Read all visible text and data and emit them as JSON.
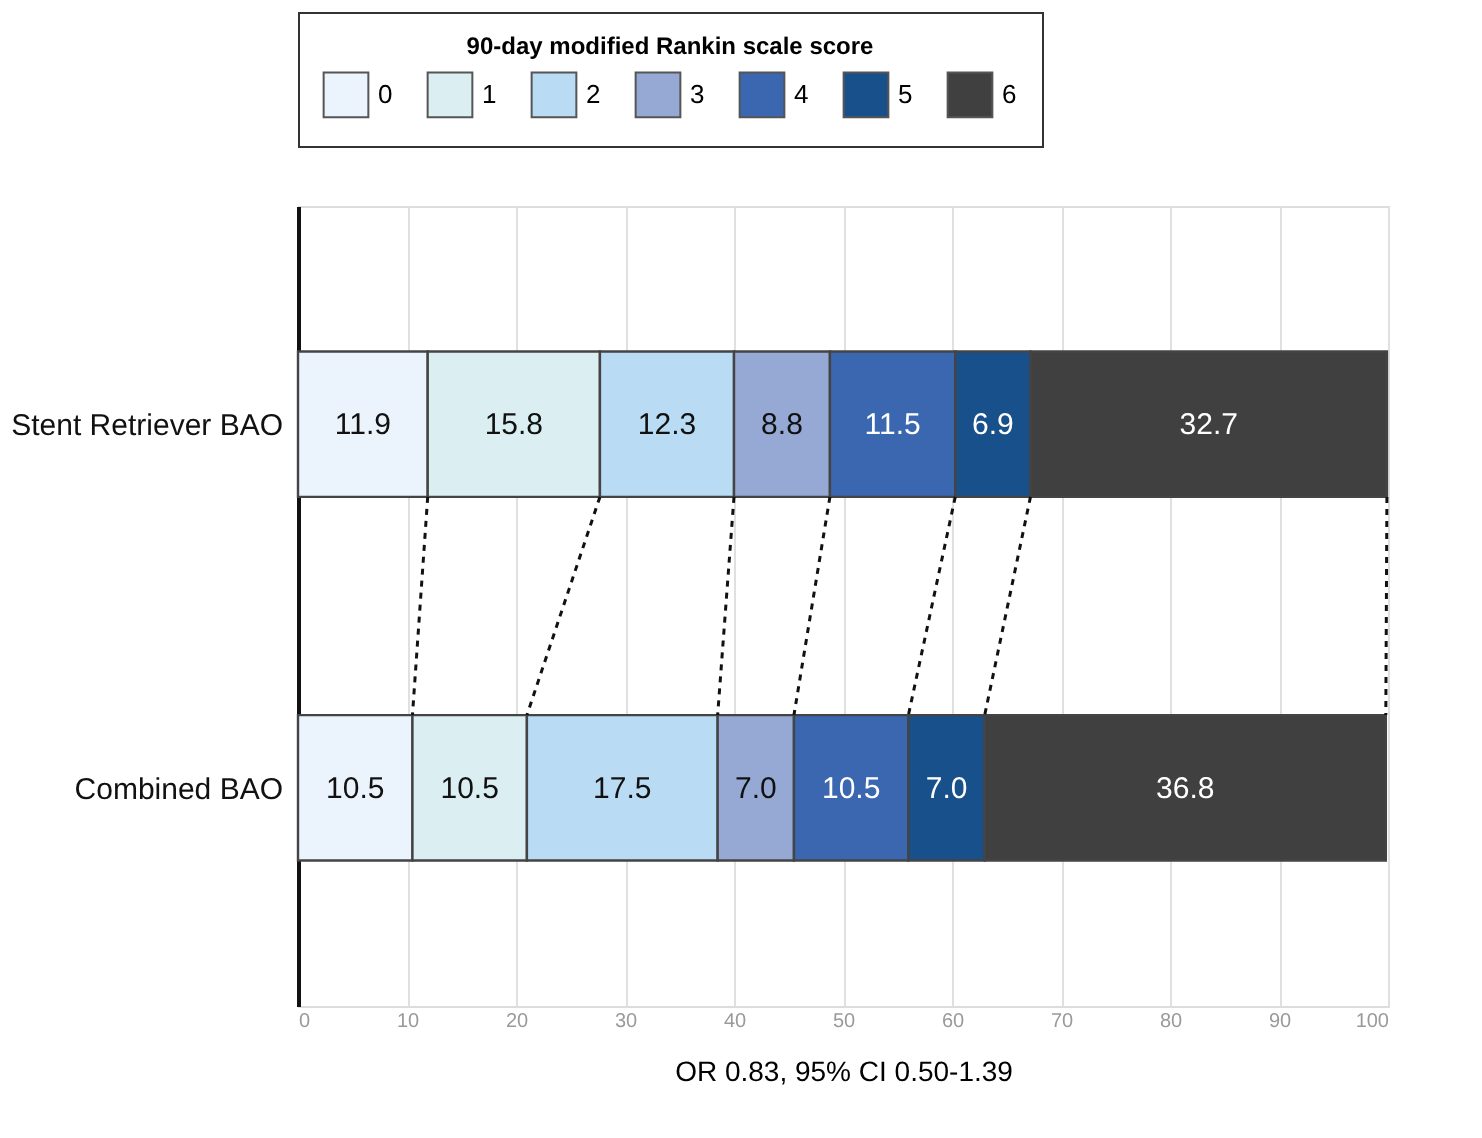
{
  "chart_data": {
    "type": "bar",
    "orientation": "horizontal",
    "stacked": true,
    "categories": [
      "Stent Retriever BAO",
      "Combined BAO"
    ],
    "legend_title": "90-day modified Rankin scale score",
    "legend": "top",
    "series": [
      {
        "name": "0",
        "color": "#ebf3fc",
        "values": [
          11.9,
          10.5
        ],
        "value_labels": [
          "11.9",
          "10.5"
        ]
      },
      {
        "name": "1",
        "color": "#dbeff3",
        "values": [
          15.8,
          10.5
        ],
        "value_labels": [
          "15.8",
          "10.5"
        ]
      },
      {
        "name": "2",
        "color": "#b9dbf3",
        "values": [
          12.3,
          17.5
        ],
        "value_labels": [
          "12.3",
          "17.5"
        ]
      },
      {
        "name": "3",
        "color": "#95a9d4",
        "values": [
          8.8,
          7.0
        ],
        "value_labels": [
          "8.8",
          "7.0"
        ]
      },
      {
        "name": "4",
        "color": "#3a67b0",
        "values": [
          11.5,
          10.5
        ],
        "value_labels": [
          "11.5",
          "10.5"
        ]
      },
      {
        "name": "5",
        "color": "#17508a",
        "values": [
          6.9,
          7.0
        ],
        "value_labels": [
          "6.9",
          "7.0"
        ]
      },
      {
        "name": "6",
        "color": "#404040",
        "values": [
          32.7,
          36.8
        ],
        "value_labels": [
          "32.7",
          "36.8"
        ]
      }
    ],
    "xlabel": "OR 0.83, 95% CI 0.50-1.39",
    "xlim": [
      0,
      100
    ],
    "xticks": [
      0,
      10,
      20,
      30,
      40,
      50,
      60,
      70,
      80,
      90,
      100
    ],
    "grid": "x"
  }
}
